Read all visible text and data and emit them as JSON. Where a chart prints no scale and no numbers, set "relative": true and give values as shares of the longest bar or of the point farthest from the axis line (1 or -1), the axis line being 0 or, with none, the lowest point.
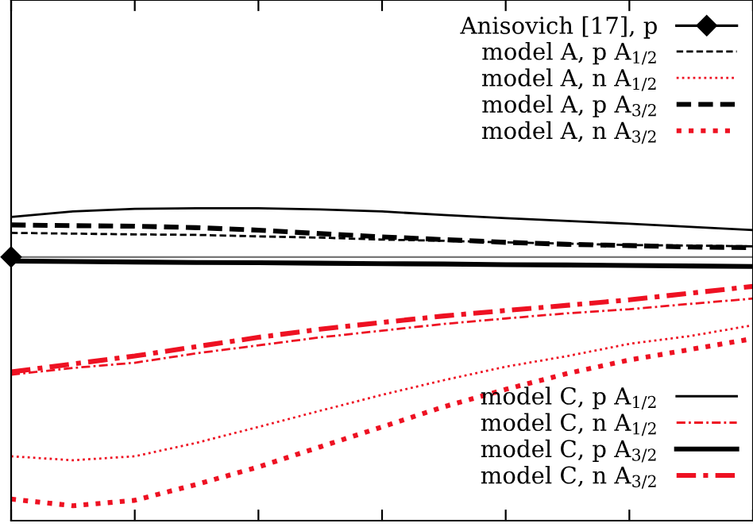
{
  "chart_data": {
    "type": "line",
    "relative": true,
    "legend": "right",
    "grid": false,
    "categories": [
      null,
      null,
      null,
      null,
      null,
      null,
      null,
      null,
      null,
      null,
      null,
      null,
      null
    ],
    "series": [
      {
        "name": "Anisovich [17], p",
        "marker": "diamond",
        "color": "#000000",
        "values": [
          0,
          null,
          null,
          null,
          null,
          null,
          null,
          null,
          null,
          null,
          null,
          null,
          null
        ]
      },
      {
        "name": "model A, p A$_{1/2}$",
        "color": "#000000",
        "line_style": "dashed",
        "values": [
          0.097,
          0.094,
          0.091,
          0.089,
          0.083,
          0.078,
          0.07,
          0.065,
          0.059,
          0.054,
          0.048,
          0.046,
          0.043
        ]
      },
      {
        "name": "model A, n A$_{1/2}$",
        "color": "#ee1122",
        "line_style": "dotted",
        "values": [
          -0.801,
          -0.817,
          -0.801,
          -0.747,
          -0.683,
          -0.618,
          -0.554,
          -0.495,
          -0.441,
          -0.398,
          -0.349,
          -0.317,
          -0.274
        ]
      },
      {
        "name": "model A, p A$_{3/2}$",
        "color": "#000000",
        "line_style": "dashed",
        "values": [
          0.129,
          0.126,
          0.124,
          0.118,
          0.108,
          0.094,
          0.081,
          0.07,
          0.059,
          0.051,
          0.046,
          0.04,
          0.038
        ]
      },
      {
        "name": "model A, n A$_{3/2}$",
        "color": "#ee1122",
        "line_style": "dotted",
        "values": [
          -0.973,
          -1,
          -0.978,
          -0.914,
          -0.844,
          -0.763,
          -0.683,
          -0.602,
          -0.532,
          -0.468,
          -0.414,
          -0.371,
          -0.328
        ]
      },
      {
        "name": "model C, p A$_{1/2}$",
        "color": "#000000",
        "line_style": "solid",
        "values": [
          0.161,
          0.183,
          0.194,
          0.196,
          0.196,
          0.191,
          0.183,
          0.169,
          0.156,
          0.145,
          0.134,
          0.121,
          0.108
        ]
      },
      {
        "name": "model C, n A$_{1/2}$",
        "color": "#ee1122",
        "line_style": "dashdot",
        "values": [
          -0.473,
          -0.446,
          -0.425,
          -0.387,
          -0.355,
          -0.323,
          -0.296,
          -0.269,
          -0.247,
          -0.226,
          -0.21,
          -0.188,
          -0.167
        ]
      },
      {
        "name": "model C, p A$_{3/2}$",
        "color": "#000000",
        "line_style": "solid",
        "values": [
          -0.016,
          -0.018,
          -0.02,
          -0.022,
          -0.023,
          -0.025,
          -0.027,
          -0.028,
          -0.031,
          -0.032,
          -0.034,
          -0.036,
          -0.038
        ]
      },
      {
        "name": "model C, n A$_{3/2}$",
        "color": "#ee1122",
        "line_style": "dashdot",
        "values": [
          -0.462,
          -0.43,
          -0.398,
          -0.36,
          -0.323,
          -0.29,
          -0.263,
          -0.237,
          -0.215,
          -0.194,
          -0.172,
          -0.145,
          -0.118
        ]
      }
    ]
  }
}
